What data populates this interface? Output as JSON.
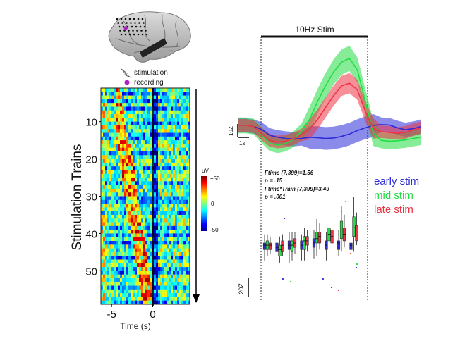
{
  "brain": {
    "legend_stimulation": "stimulation",
    "legend_recording": "recording"
  },
  "colors": {
    "early": "#2b2bd9",
    "mid": "#22dd44",
    "late": "#ee3344",
    "recording": "#b01ec8"
  },
  "chart_data": [
    {
      "type": "heatmap",
      "ylabel": "Stimulation Trains",
      "xlabel": "Time (s)",
      "x_ticks": [
        "-5",
        "0"
      ],
      "y_ticks": [
        "10",
        "20",
        "30",
        "40",
        "50"
      ],
      "xlim": [
        -6.3,
        4.5
      ],
      "ylim": [
        1,
        59
      ],
      "colorbar": {
        "unit": "uV",
        "ticks": [
          "+50",
          "0",
          "-50"
        ],
        "range": [
          -50,
          50
        ]
      }
    },
    {
      "type": "line",
      "title": "10Hz Stim",
      "x_scalebar": "1s",
      "y_scalebar": "10Z",
      "series": [
        {
          "name": "early stim",
          "color": "#2b2bd9",
          "values": [
            0,
            0,
            -0.3,
            -1,
            -2.5,
            -3,
            -3.3,
            -3.5,
            -3.3,
            -3,
            -3.1,
            -3.3,
            -3.2,
            -2.8,
            -2.2,
            -1.3,
            -0.6,
            0,
            0.2,
            0.1,
            -0.6,
            -1.1,
            -0.8,
            -0.3
          ]
        },
        {
          "name": "mid stim",
          "color": "#22dd44",
          "values": [
            0,
            0,
            -0.3,
            -2.5,
            -4.5,
            -5,
            -4.6,
            -3.5,
            -1.5,
            1.5,
            6,
            10,
            13.5,
            16,
            17,
            14,
            6,
            -2,
            -3.8,
            -4,
            -3.9,
            -3.7,
            -3.3,
            -3
          ]
        },
        {
          "name": "late stim",
          "color": "#ee3344",
          "values": [
            0,
            0,
            -0.3,
            -2.2,
            -3.8,
            -4.2,
            -4,
            -3.4,
            -2.4,
            -1,
            1.5,
            4.5,
            7.5,
            10,
            10.7,
            9,
            3.5,
            -0.8,
            -1.6,
            -1.8,
            -2,
            -1.8,
            -1.1,
            -0.6
          ]
        }
      ]
    },
    {
      "type": "box",
      "y_scalebar": "20Z",
      "annotations": [
        "Ftime (7,399)=1.56",
        "p = .15",
        "Ftime*Train (7,399)=3.49",
        "p = .001"
      ],
      "series": [
        {
          "name": "early stim",
          "color": "#2b2bd9",
          "boxes": [
            [
              -8,
              -3,
              -1,
              0,
              4
            ],
            [
              -9,
              -4,
              -2,
              0,
              3
            ],
            [
              -9,
              -3,
              -1,
              1,
              5
            ],
            [
              -8,
              -3,
              -1,
              1,
              4
            ],
            [
              -7,
              -2,
              0,
              2,
              6
            ],
            [
              -8,
              -3,
              -1,
              1,
              5
            ],
            [
              -6,
              -3,
              0,
              1,
              6
            ],
            [
              -6,
              -3,
              -1,
              0,
              3
            ]
          ]
        },
        {
          "name": "mid stim",
          "color": "#22dd44",
          "boxes": [
            [
              -6,
              -3,
              -1,
              1,
              4
            ],
            [
              -9,
              -6,
              -3,
              -1,
              3
            ],
            [
              -8,
              -4,
              -1,
              1,
              5
            ],
            [
              -8,
              -3,
              1,
              3,
              7
            ],
            [
              -6,
              0,
              2,
              5,
              11
            ],
            [
              -5,
              1,
              4,
              7,
              13
            ],
            [
              -4,
              2,
              6,
              10,
              17
            ],
            [
              -4,
              3,
              7,
              12,
              21
            ]
          ]
        },
        {
          "name": "late stim",
          "color": "#ee3344",
          "boxes": [
            [
              -5,
              -3,
              -1,
              0,
              3
            ],
            [
              -6,
              -4,
              -1,
              1,
              4
            ],
            [
              -5,
              -2,
              0,
              2,
              5
            ],
            [
              -4,
              -1,
              1,
              3,
              6
            ],
            [
              -3,
              0,
              3,
              5,
              9
            ],
            [
              -4,
              0,
              3,
              6,
              10
            ],
            [
              -2,
              1,
              4,
              7,
              13
            ],
            [
              -1,
              1,
              5,
              8,
              14
            ]
          ]
        }
      ]
    }
  ]
}
